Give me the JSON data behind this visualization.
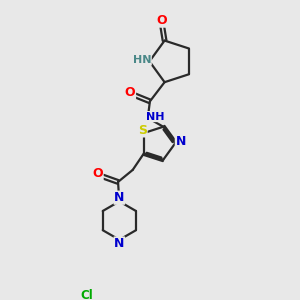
{
  "bg_color": "#e8e8e8",
  "bond_color": "#2a2a2a",
  "bond_width": 1.6,
  "atom_colors": {
    "O": "#ff0000",
    "N": "#0000cd",
    "S": "#cccc00",
    "Cl": "#00aa00",
    "C": "#2a2a2a",
    "H": "#4a8888"
  },
  "font_size": 8.0,
  "fig_width": 3.0,
  "fig_height": 3.0
}
